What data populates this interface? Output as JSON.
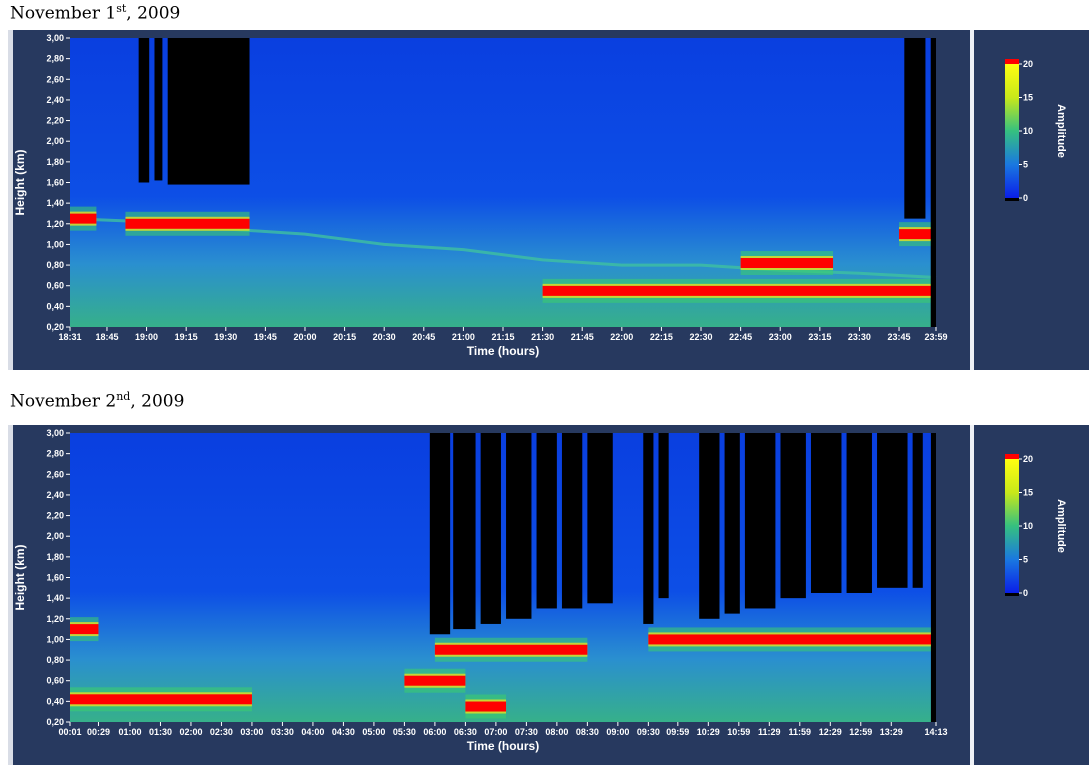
{
  "caption1": {
    "text": "November 1",
    "sup": "st",
    "tail": ", 2009"
  },
  "caption2": {
    "text": "November 2",
    "sup": "nd",
    "tail": ", 2009"
  },
  "chart_data": [
    {
      "type": "heatmap",
      "title": "November 1st, 2009",
      "xlabel": "Time (hours)",
      "ylabel": "Height (km)",
      "colorbar_label": "Amplitude",
      "colorbar_ticks": [
        "20",
        "15",
        "10",
        "5",
        "0"
      ],
      "x_ticks": [
        "18:31",
        "18:45",
        "19:00",
        "19:15",
        "19:30",
        "19:45",
        "20:00",
        "20:15",
        "20:30",
        "20:45",
        "21:00",
        "21:15",
        "21:30",
        "21:45",
        "22:00",
        "22:15",
        "22:30",
        "22:45",
        "23:00",
        "23:15",
        "23:30",
        "23:45",
        "23:59"
      ],
      "y_ticks": [
        "3,00",
        "2,80",
        "2,60",
        "2,40",
        "2,20",
        "2,00",
        "1,80",
        "1,60",
        "1,40",
        "1,20",
        "1,00",
        "0,80",
        "0,60",
        "0,40",
        "0,20"
      ],
      "ylim": [
        0.2,
        3.0
      ],
      "zlim": [
        0,
        20
      ],
      "features": {
        "high_layer": [
          [
            "18:31",
            1.25
          ],
          [
            "19:00",
            1.22
          ],
          [
            "19:30",
            1.15
          ],
          [
            "20:00",
            1.1
          ],
          [
            "20:30",
            1.0
          ],
          [
            "21:00",
            0.95
          ],
          [
            "21:30",
            0.85
          ],
          [
            "22:00",
            0.8
          ],
          [
            "22:30",
            0.8
          ],
          [
            "23:00",
            0.75
          ],
          [
            "23:30",
            0.72
          ],
          [
            "23:59",
            0.68
          ]
        ],
        "red_bands": [
          {
            "start": "18:31",
            "end": "18:41",
            "height": 1.25
          },
          {
            "start": "18:52",
            "end": "19:39",
            "height": 1.2
          },
          {
            "start": "21:30",
            "end": "23:59",
            "height": 0.55
          },
          {
            "start": "22:45",
            "end": "23:20",
            "height": 0.82
          },
          {
            "start": "23:45",
            "end": "23:59",
            "height": 1.1
          }
        ],
        "no_data": [
          {
            "start": "18:57",
            "end": "19:01",
            "from": 1.6,
            "to": 3.0
          },
          {
            "start": "19:03",
            "end": "19:06",
            "from": 1.62,
            "to": 3.0
          },
          {
            "start": "19:08",
            "end": "19:39",
            "from": 1.58,
            "to": 3.0
          },
          {
            "start": "23:47",
            "end": "23:55",
            "from": 1.25,
            "to": 3.0
          },
          {
            "start": "23:57",
            "end": "23:59",
            "from": 0.2,
            "to": 3.0
          }
        ]
      }
    },
    {
      "type": "heatmap",
      "title": "November 2nd, 2009",
      "xlabel": "Time (hours)",
      "ylabel": "Height (km)",
      "colorbar_label": "Amplitude",
      "colorbar_ticks": [
        "20",
        "15",
        "10",
        "5",
        "0"
      ],
      "x_ticks": [
        "00:01",
        "00:29",
        "01:00",
        "01:30",
        "02:00",
        "02:30",
        "03:00",
        "03:30",
        "04:00",
        "04:30",
        "05:00",
        "05:30",
        "06:00",
        "06:30",
        "07:00",
        "07:30",
        "08:00",
        "08:30",
        "09:00",
        "09:30",
        "09:59",
        "10:29",
        "10:59",
        "11:29",
        "11:59",
        "12:29",
        "12:59",
        "13:29",
        "14:13"
      ],
      "y_ticks": [
        "3,00",
        "2,80",
        "2,60",
        "2,40",
        "2,20",
        "2,00",
        "1,80",
        "1,60",
        "1,40",
        "1,20",
        "1,00",
        "0,80",
        "0,60",
        "0,40",
        "0,20"
      ],
      "ylim": [
        0.2,
        3.0
      ],
      "zlim": [
        0,
        20
      ],
      "features": {
        "red_bands": [
          {
            "start": "00:01",
            "end": "00:29",
            "height": 1.1
          },
          {
            "start": "00:01",
            "end": "03:00",
            "height": 0.42
          },
          {
            "start": "05:30",
            "end": "06:30",
            "height": 0.6
          },
          {
            "start": "06:00",
            "end": "08:30",
            "height": 0.9
          },
          {
            "start": "06:30",
            "end": "07:10",
            "height": 0.35
          },
          {
            "start": "09:30",
            "end": "14:13",
            "height": 1.0
          }
        ],
        "no_data": [
          {
            "start": "05:55",
            "end": "06:15",
            "from": 1.05,
            "to": 3.0
          },
          {
            "start": "06:18",
            "end": "06:40",
            "from": 1.1,
            "to": 3.0
          },
          {
            "start": "06:45",
            "end": "07:05",
            "from": 1.15,
            "to": 3.0
          },
          {
            "start": "07:10",
            "end": "07:35",
            "from": 1.2,
            "to": 3.0
          },
          {
            "start": "07:40",
            "end": "08:00",
            "from": 1.3,
            "to": 3.0
          },
          {
            "start": "08:05",
            "end": "08:25",
            "from": 1.3,
            "to": 3.0
          },
          {
            "start": "08:30",
            "end": "08:55",
            "from": 1.35,
            "to": 3.0
          },
          {
            "start": "09:25",
            "end": "09:35",
            "from": 1.15,
            "to": 3.0
          },
          {
            "start": "09:40",
            "end": "09:50",
            "from": 1.4,
            "to": 3.0
          },
          {
            "start": "10:20",
            "end": "10:40",
            "from": 1.2,
            "to": 3.0
          },
          {
            "start": "10:45",
            "end": "11:00",
            "from": 1.25,
            "to": 3.0
          },
          {
            "start": "11:05",
            "end": "11:35",
            "from": 1.3,
            "to": 3.0
          },
          {
            "start": "11:40",
            "end": "12:05",
            "from": 1.4,
            "to": 3.0
          },
          {
            "start": "12:10",
            "end": "12:40",
            "from": 1.45,
            "to": 3.0
          },
          {
            "start": "12:45",
            "end": "13:10",
            "from": 1.45,
            "to": 3.0
          },
          {
            "start": "13:15",
            "end": "13:45",
            "from": 1.5,
            "to": 3.0
          },
          {
            "start": "13:50",
            "end": "14:00",
            "from": 1.5,
            "to": 3.0
          },
          {
            "start": "14:08",
            "end": "14:13",
            "from": 0.2,
            "to": 3.0
          }
        ]
      }
    }
  ]
}
